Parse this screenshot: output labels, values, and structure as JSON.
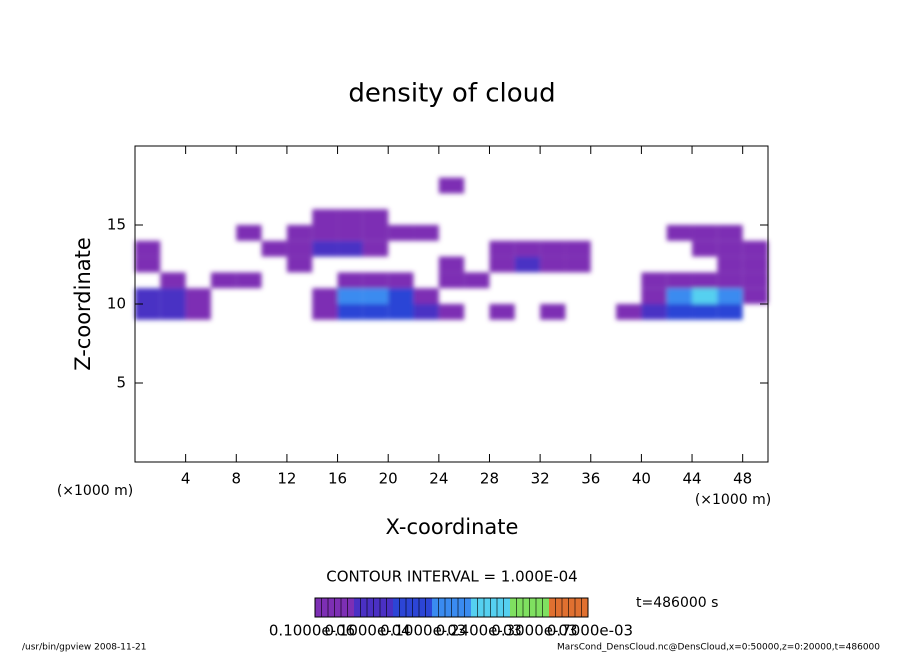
{
  "chart_data": {
    "type": "contour",
    "title": "density of cloud",
    "x_label": "X-coordinate",
    "y_label": "Z-coordinate",
    "x_unit": "(×1000 m)",
    "y_unit": "(×1000 m)",
    "contour_interval": "CONTOUR INTERVAL = 1.000E-04",
    "time_label": "t=486000 s",
    "footer_left": "/usr/bin/gpview  2008-11-21",
    "footer_right": "MarsCond_DensCloud.nc@DensCloud,x=0:50000,z=0:20000,t=486000",
    "xlim": [
      0,
      50
    ],
    "ylim": [
      0,
      20
    ],
    "xticks": [
      4,
      8,
      12,
      16,
      20,
      24,
      28,
      32,
      36,
      40,
      44,
      48
    ],
    "yticks": [
      5,
      10,
      15
    ],
    "xbins": [
      0,
      2,
      4,
      6,
      8,
      10,
      12,
      14,
      16,
      18,
      20,
      22,
      24,
      26,
      28,
      30,
      32,
      34,
      36,
      38,
      40,
      42,
      44,
      46,
      48,
      50
    ],
    "zbins": [
      9,
      10,
      11,
      12,
      13,
      14,
      15,
      16,
      17,
      18
    ],
    "values": [
      [
        0.0002,
        0.0002,
        0.0001,
        null,
        null,
        null,
        null,
        0.0001,
        0.0003,
        0.0003,
        0.0003,
        0.0002,
        0.0001,
        null,
        0.0001,
        null,
        0.0001,
        null,
        null,
        0.0001,
        0.0002,
        0.0003,
        0.0003,
        0.0003,
        null
      ],
      [
        0.0002,
        0.0002,
        0.0001,
        null,
        null,
        null,
        null,
        0.0001,
        0.0004,
        0.0004,
        0.0003,
        0.0001,
        null,
        null,
        null,
        null,
        null,
        null,
        null,
        null,
        0.0001,
        0.0004,
        0.0005,
        0.0004,
        0.0001
      ],
      [
        null,
        0.0001,
        null,
        0.0001,
        0.0001,
        null,
        null,
        null,
        0.0001,
        0.0001,
        0.0001,
        null,
        0.0001,
        0.0001,
        null,
        null,
        null,
        null,
        null,
        null,
        0.0001,
        0.0001,
        0.0001,
        0.0001,
        0.0001
      ],
      [
        0.0001,
        null,
        null,
        null,
        null,
        null,
        0.0001,
        null,
        null,
        null,
        null,
        null,
        0.0001,
        null,
        0.0001,
        0.0002,
        0.0001,
        0.0001,
        null,
        null,
        null,
        null,
        null,
        0.0001,
        0.0001
      ],
      [
        0.0001,
        null,
        null,
        null,
        null,
        0.0001,
        0.0001,
        0.0002,
        0.0002,
        0.0001,
        null,
        null,
        null,
        null,
        0.0001,
        0.0001,
        0.0001,
        0.0001,
        null,
        null,
        null,
        null,
        0.0001,
        0.0001,
        0.0001
      ],
      [
        null,
        null,
        null,
        null,
        0.0001,
        null,
        0.0001,
        0.0001,
        0.0001,
        0.0001,
        0.0001,
        0.0001,
        null,
        null,
        null,
        null,
        null,
        null,
        null,
        null,
        null,
        0.0001,
        0.0001,
        0.0001,
        null
      ],
      [
        null,
        null,
        null,
        null,
        null,
        null,
        null,
        0.0001,
        0.0001,
        0.0001,
        null,
        null,
        null,
        null,
        null,
        null,
        null,
        null,
        null,
        null,
        null,
        null,
        null,
        null,
        null
      ],
      [
        null,
        null,
        null,
        null,
        null,
        null,
        null,
        null,
        null,
        null,
        null,
        null,
        null,
        null,
        null,
        null,
        null,
        null,
        null,
        null,
        null,
        null,
        null,
        null,
        null
      ],
      [
        null,
        null,
        null,
        null,
        null,
        null,
        null,
        null,
        null,
        null,
        null,
        null,
        0.0001,
        null,
        null,
        null,
        null,
        null,
        null,
        null,
        null,
        null,
        null,
        null,
        null
      ]
    ],
    "levels": [
      0.0001,
      0.0002,
      0.0003,
      0.0004,
      0.0005,
      0.0006,
      0.0007
    ],
    "colors": [
      "#7d2fb4",
      "#4a30c4",
      "#2c45d6",
      "#3a8bf0",
      "#55d0f0",
      "#7fe060",
      "#e07030"
    ],
    "colorbar_labels": [
      "0.1000e-06",
      "0.1000e-04",
      "0.1000e-03",
      "0.2400e-03",
      "0.3000e-03",
      "0.7000e-03"
    ]
  }
}
